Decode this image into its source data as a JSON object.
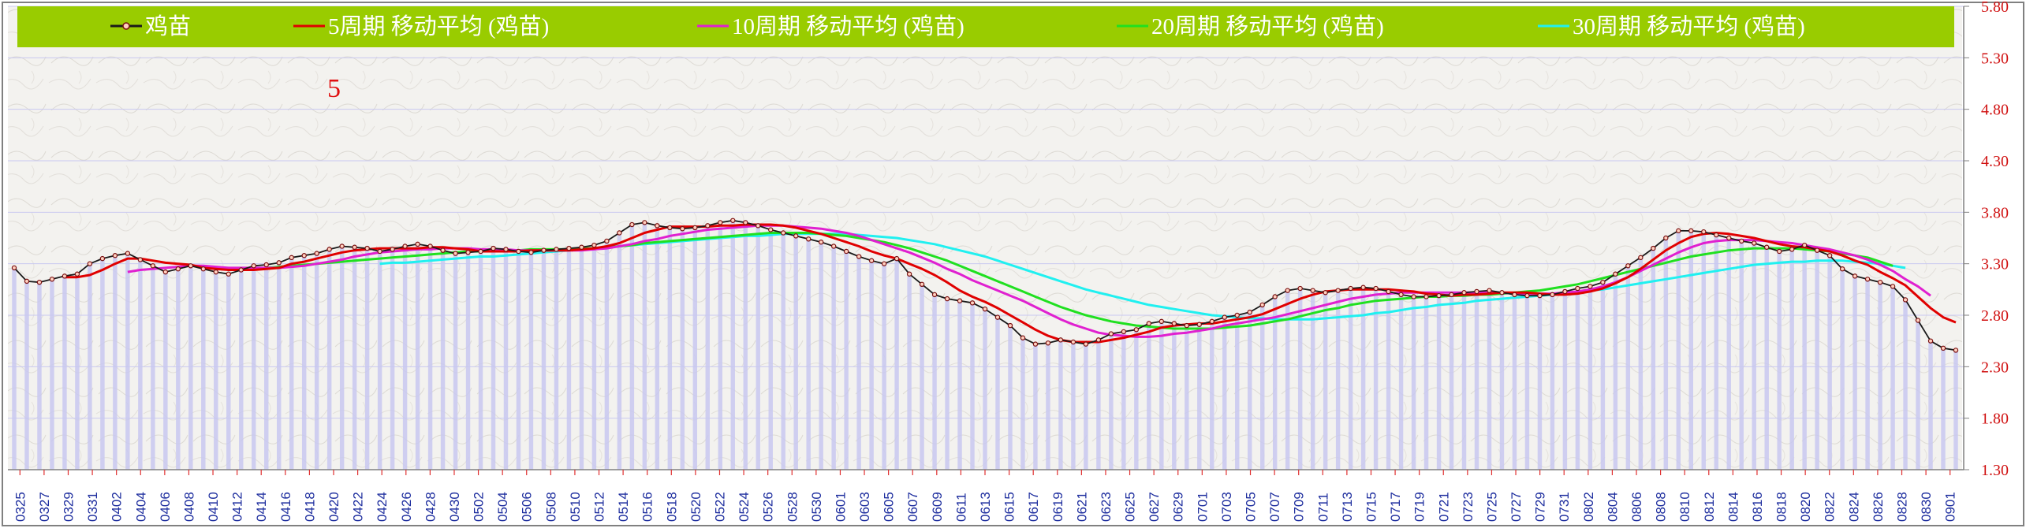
{
  "chart_data": {
    "type": "line",
    "title": "",
    "xlabel": "",
    "ylabel": "",
    "annotation": "5",
    "ylim": [
      1.3,
      5.8
    ],
    "yticks": [
      "1.30",
      "1.80",
      "2.30",
      "2.80",
      "3.30",
      "3.80",
      "4.30",
      "4.80",
      "5.30",
      "5.80"
    ],
    "x_labels": [
      "0325",
      "0327",
      "0329",
      "0331",
      "0402",
      "0404",
      "0406",
      "0408",
      "0410",
      "0412",
      "0414",
      "0416",
      "0418",
      "0420",
      "0422",
      "0424",
      "0426",
      "0428",
      "0430",
      "0502",
      "0504",
      "0506",
      "0508",
      "0510",
      "0512",
      "0514",
      "0516",
      "0518",
      "0520",
      "0522",
      "0524",
      "0526",
      "0528",
      "0530",
      "0601",
      "0603",
      "0605",
      "0607",
      "0609",
      "0611",
      "0613",
      "0615",
      "0617",
      "0619",
      "0621",
      "0623",
      "0625",
      "0627",
      "0629",
      "0701",
      "0703",
      "0705",
      "0707",
      "0709",
      "0711",
      "0713",
      "0715",
      "0717",
      "0719",
      "0721",
      "0723",
      "0725",
      "0727",
      "0729",
      "0731",
      "0802",
      "0804",
      "0806",
      "0808",
      "0810",
      "0812",
      "0814",
      "0816",
      "0818",
      "0820",
      "0822",
      "0824",
      "0826",
      "0828",
      "0830",
      "0901"
    ],
    "series": [
      {
        "name": "鸡苗",
        "color": "#1a1a1a",
        "marker_color": "#7a1010",
        "values": [
          3.26,
          3.13,
          3.12,
          3.15,
          3.18,
          3.2,
          3.3,
          3.35,
          3.38,
          3.4,
          3.34,
          3.28,
          3.22,
          3.25,
          3.28,
          3.25,
          3.22,
          3.2,
          3.24,
          3.28,
          3.29,
          3.31,
          3.36,
          3.38,
          3.4,
          3.44,
          3.47,
          3.46,
          3.45,
          3.42,
          3.44,
          3.47,
          3.49,
          3.47,
          3.43,
          3.4,
          3.41,
          3.42,
          3.45,
          3.44,
          3.42,
          3.41,
          3.43,
          3.44,
          3.45,
          3.46,
          3.48,
          3.52,
          3.6,
          3.68,
          3.7,
          3.67,
          3.65,
          3.64,
          3.65,
          3.67,
          3.7,
          3.72,
          3.7,
          3.67,
          3.63,
          3.6,
          3.57,
          3.54,
          3.51,
          3.47,
          3.42,
          3.37,
          3.33,
          3.3,
          3.35,
          3.2,
          3.1,
          3.0,
          2.96,
          2.94,
          2.92,
          2.86,
          2.78,
          2.7,
          2.58,
          2.52,
          2.53,
          2.56,
          2.54,
          2.52,
          2.56,
          2.62,
          2.64,
          2.66,
          2.72,
          2.74,
          2.72,
          2.7,
          2.71,
          2.74,
          2.78,
          2.8,
          2.83,
          2.9,
          2.98,
          3.04,
          3.06,
          3.04,
          3.02,
          3.04,
          3.06,
          3.07,
          3.06,
          3.03,
          3.0,
          2.98,
          2.98,
          2.99,
          3.0,
          3.02,
          3.03,
          3.04,
          3.02,
          3.0,
          2.99,
          2.99,
          3.0,
          3.03,
          3.06,
          3.08,
          3.12,
          3.2,
          3.28,
          3.36,
          3.45,
          3.55,
          3.62,
          3.62,
          3.61,
          3.58,
          3.55,
          3.52,
          3.5,
          3.46,
          3.42,
          3.44,
          3.48,
          3.43,
          3.38,
          3.25,
          3.18,
          3.15,
          3.12,
          3.08,
          2.95,
          2.75,
          2.55,
          2.48,
          2.46
        ]
      },
      {
        "name": "5周期  移动平均 (鸡苗)",
        "color": "#e00000",
        "values": [
          null,
          null,
          null,
          null,
          3.17,
          3.17,
          3.19,
          3.24,
          3.3,
          3.35,
          3.35,
          3.33,
          3.31,
          3.3,
          3.29,
          3.26,
          3.25,
          3.24,
          3.24,
          3.24,
          3.25,
          3.26,
          3.3,
          3.32,
          3.35,
          3.38,
          3.41,
          3.43,
          3.44,
          3.45,
          3.45,
          3.45,
          3.45,
          3.46,
          3.46,
          3.45,
          3.44,
          3.42,
          3.42,
          3.42,
          3.42,
          3.43,
          3.43,
          3.43,
          3.43,
          3.44,
          3.45,
          3.47,
          3.5,
          3.55,
          3.6,
          3.63,
          3.66,
          3.66,
          3.66,
          3.66,
          3.67,
          3.67,
          3.68,
          3.68,
          3.68,
          3.67,
          3.65,
          3.62,
          3.59,
          3.55,
          3.51,
          3.47,
          3.42,
          3.38,
          3.35,
          3.3,
          3.25,
          3.19,
          3.12,
          3.04,
          2.98,
          2.93,
          2.87,
          2.8,
          2.73,
          2.66,
          2.6,
          2.56,
          2.54,
          2.54,
          2.54,
          2.56,
          2.58,
          2.61,
          2.64,
          2.68,
          2.7,
          2.71,
          2.72,
          2.72,
          2.74,
          2.76,
          2.78,
          2.81,
          2.86,
          2.91,
          2.96,
          3.0,
          3.03,
          3.04,
          3.05,
          3.05,
          3.05,
          3.05,
          3.04,
          3.03,
          3.01,
          3.0,
          2.99,
          3.0,
          3.0,
          3.01,
          3.02,
          3.02,
          3.02,
          3.01,
          3.0,
          3.0,
          3.01,
          3.03,
          3.06,
          3.11,
          3.17,
          3.25,
          3.34,
          3.43,
          3.5,
          3.56,
          3.59,
          3.6,
          3.59,
          3.57,
          3.55,
          3.52,
          3.49,
          3.47,
          3.46,
          3.44,
          3.42,
          3.38,
          3.33,
          3.29,
          3.22,
          3.16,
          3.09,
          2.98,
          2.87,
          2.78,
          2.73
        ]
      },
      {
        "name": "10周期  移动平均 (鸡苗)",
        "color": "#e020d0",
        "values": [
          null,
          null,
          null,
          null,
          null,
          null,
          null,
          null,
          null,
          3.22,
          3.24,
          3.25,
          3.26,
          3.27,
          3.28,
          3.28,
          3.27,
          3.26,
          3.26,
          3.26,
          3.26,
          3.26,
          3.27,
          3.28,
          3.3,
          3.32,
          3.34,
          3.37,
          3.39,
          3.41,
          3.42,
          3.43,
          3.44,
          3.44,
          3.45,
          3.45,
          3.45,
          3.44,
          3.44,
          3.44,
          3.43,
          3.43,
          3.43,
          3.43,
          3.43,
          3.43,
          3.44,
          3.45,
          3.47,
          3.49,
          3.52,
          3.54,
          3.57,
          3.59,
          3.61,
          3.63,
          3.64,
          3.65,
          3.66,
          3.67,
          3.67,
          3.67,
          3.66,
          3.65,
          3.64,
          3.62,
          3.6,
          3.57,
          3.53,
          3.49,
          3.45,
          3.41,
          3.36,
          3.31,
          3.25,
          3.2,
          3.14,
          3.09,
          3.04,
          2.99,
          2.94,
          2.88,
          2.82,
          2.76,
          2.71,
          2.67,
          2.63,
          2.61,
          2.6,
          2.59,
          2.59,
          2.6,
          2.62,
          2.63,
          2.65,
          2.67,
          2.7,
          2.72,
          2.74,
          2.76,
          2.78,
          2.81,
          2.84,
          2.87,
          2.9,
          2.93,
          2.96,
          2.98,
          3.0,
          3.01,
          3.02,
          3.02,
          3.02,
          3.02,
          3.02,
          3.02,
          3.02,
          3.02,
          3.02,
          3.01,
          3.01,
          3.01,
          3.01,
          3.02,
          3.03,
          3.05,
          3.08,
          3.12,
          3.17,
          3.23,
          3.29,
          3.35,
          3.41,
          3.46,
          3.5,
          3.52,
          3.53,
          3.53,
          3.53,
          3.52,
          3.51,
          3.5,
          3.48,
          3.46,
          3.44,
          3.41,
          3.38,
          3.34,
          3.29,
          3.23,
          3.15,
          3.08,
          2.99
        ]
      },
      {
        "name": "20周期  移动平均 (鸡苗)",
        "color": "#20e020",
        "values": [
          null,
          null,
          null,
          null,
          null,
          null,
          null,
          null,
          null,
          null,
          null,
          null,
          null,
          null,
          null,
          null,
          null,
          null,
          null,
          3.25,
          3.26,
          3.27,
          3.28,
          3.29,
          3.3,
          3.31,
          3.32,
          3.33,
          3.34,
          3.35,
          3.36,
          3.37,
          3.38,
          3.39,
          3.4,
          3.41,
          3.42,
          3.42,
          3.43,
          3.43,
          3.43,
          3.44,
          3.44,
          3.44,
          3.44,
          3.45,
          3.45,
          3.46,
          3.47,
          3.48,
          3.5,
          3.51,
          3.52,
          3.53,
          3.54,
          3.55,
          3.56,
          3.57,
          3.58,
          3.59,
          3.6,
          3.6,
          3.6,
          3.6,
          3.59,
          3.58,
          3.57,
          3.55,
          3.53,
          3.51,
          3.48,
          3.45,
          3.41,
          3.37,
          3.33,
          3.28,
          3.23,
          3.18,
          3.13,
          3.08,
          3.03,
          2.98,
          2.93,
          2.88,
          2.84,
          2.8,
          2.77,
          2.74,
          2.72,
          2.7,
          2.69,
          2.68,
          2.67,
          2.67,
          2.67,
          2.67,
          2.68,
          2.69,
          2.7,
          2.72,
          2.74,
          2.76,
          2.79,
          2.82,
          2.85,
          2.87,
          2.9,
          2.92,
          2.94,
          2.95,
          2.96,
          2.97,
          2.98,
          2.98,
          2.99,
          2.99,
          3.0,
          3.0,
          3.01,
          3.02,
          3.03,
          3.04,
          3.06,
          3.08,
          3.1,
          3.13,
          3.16,
          3.19,
          3.22,
          3.25,
          3.28,
          3.31,
          3.34,
          3.37,
          3.39,
          3.41,
          3.43,
          3.44,
          3.45,
          3.45,
          3.45,
          3.45,
          3.44,
          3.43,
          3.42,
          3.4,
          3.38,
          3.36,
          3.32,
          3.28
        ]
      },
      {
        "name": "30周期  移动平均 (鸡苗)",
        "color": "#20f0f0",
        "values": [
          null,
          null,
          null,
          null,
          null,
          null,
          null,
          null,
          null,
          null,
          null,
          null,
          null,
          null,
          null,
          null,
          null,
          null,
          null,
          null,
          null,
          null,
          null,
          null,
          null,
          null,
          null,
          null,
          null,
          3.3,
          3.31,
          3.31,
          3.32,
          3.33,
          3.34,
          3.35,
          3.36,
          3.37,
          3.37,
          3.38,
          3.39,
          3.4,
          3.41,
          3.42,
          3.43,
          3.44,
          3.45,
          3.46,
          3.47,
          3.48,
          3.49,
          3.5,
          3.51,
          3.52,
          3.53,
          3.54,
          3.55,
          3.56,
          3.57,
          3.57,
          3.58,
          3.59,
          3.59,
          3.59,
          3.59,
          3.59,
          3.59,
          3.58,
          3.57,
          3.56,
          3.55,
          3.53,
          3.51,
          3.49,
          3.46,
          3.43,
          3.4,
          3.37,
          3.33,
          3.29,
          3.25,
          3.21,
          3.17,
          3.13,
          3.09,
          3.05,
          3.02,
          2.99,
          2.96,
          2.93,
          2.9,
          2.88,
          2.86,
          2.84,
          2.82,
          2.8,
          2.79,
          2.78,
          2.77,
          2.77,
          2.76,
          2.76,
          2.76,
          2.76,
          2.77,
          2.78,
          2.79,
          2.8,
          2.82,
          2.83,
          2.85,
          2.87,
          2.88,
          2.9,
          2.91,
          2.92,
          2.94,
          2.95,
          2.96,
          2.97,
          2.98,
          2.99,
          3.0,
          3.01,
          3.02,
          3.04,
          3.05,
          3.07,
          3.09,
          3.11,
          3.13,
          3.15,
          3.17,
          3.19,
          3.21,
          3.23,
          3.25,
          3.27,
          3.29,
          3.3,
          3.31,
          3.32,
          3.32,
          3.33,
          3.33,
          3.33,
          3.32,
          3.31,
          3.3,
          3.28,
          3.26
        ]
      }
    ],
    "legend": {
      "placement": "top",
      "background": "#99cc00"
    },
    "colors": {
      "grid": "#c8c8f0",
      "bars": "#c8c8f0",
      "ytick": "#d01010",
      "xtick": "#1f2f9f"
    }
  }
}
